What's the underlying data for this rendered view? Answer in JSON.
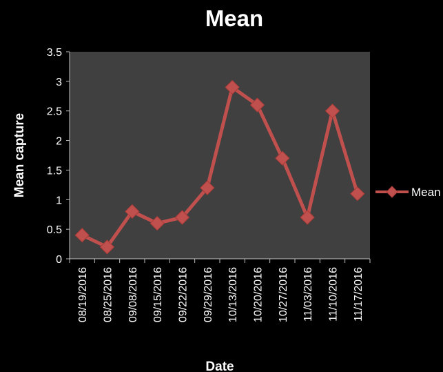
{
  "chart_data": {
    "type": "line",
    "title": "Mean",
    "xlabel": "Date",
    "ylabel": "Mean capture",
    "categories": [
      "08/19/2016",
      "08/25/2016",
      "09/08/2016",
      "09/15/2016",
      "09/22/2016",
      "09/29/2016",
      "10/13/2016",
      "10/20/2016",
      "10/27/2016",
      "11/03/2016",
      "11/10/2016",
      "11/17/2016"
    ],
    "series": [
      {
        "name": "Mean",
        "values": [
          0.4,
          0.2,
          0.8,
          0.6,
          0.7,
          1.2,
          2.9,
          2.6,
          1.7,
          0.7,
          2.5,
          1.1
        ]
      }
    ],
    "ylim": [
      0,
      3.5
    ],
    "yticks": [
      "0",
      "0.5",
      "1",
      "1.5",
      "2",
      "2.5",
      "3",
      "3.5"
    ],
    "grid": false,
    "legend_position": "right",
    "colors": {
      "background": "#000000",
      "plot_area": "#404040",
      "line": "#c0504d",
      "marker": "#c0504d",
      "text": "#ffffff"
    }
  }
}
